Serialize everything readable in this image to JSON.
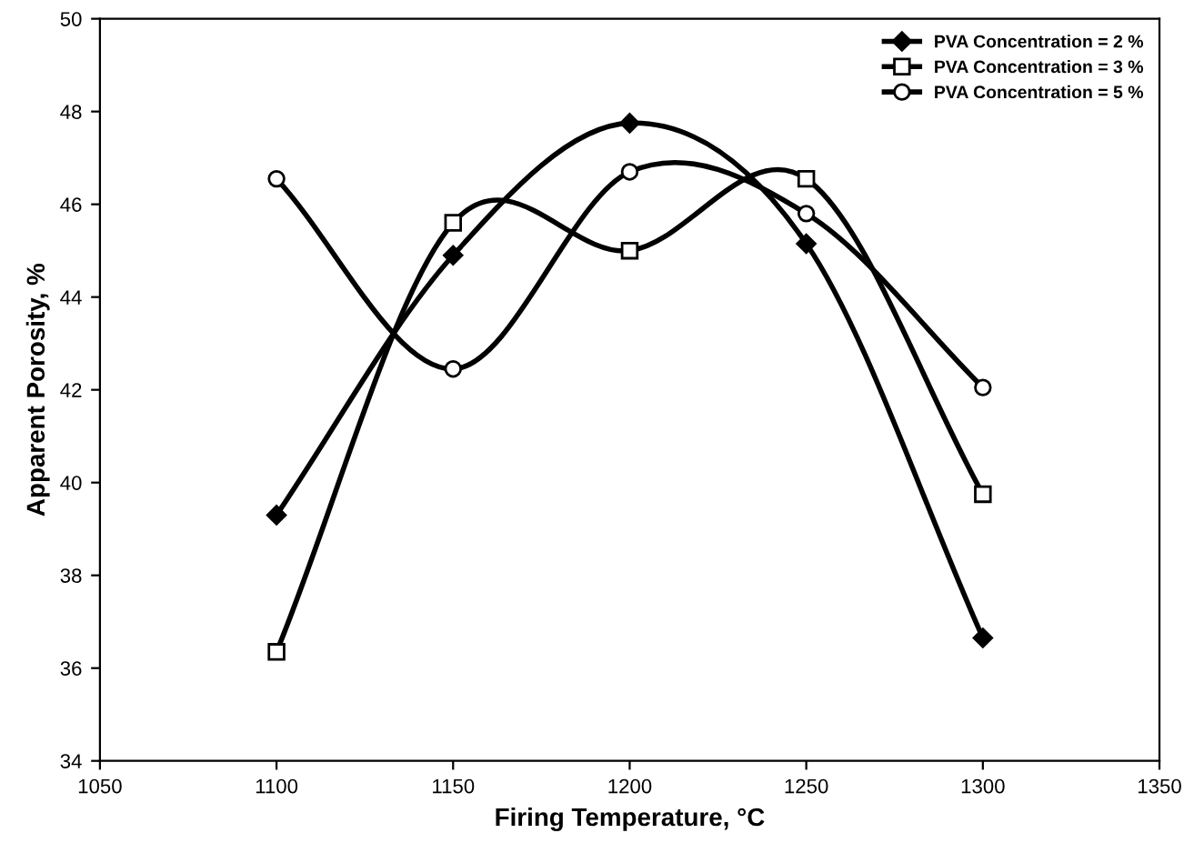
{
  "chart_data": {
    "type": "line",
    "xlabel": "Firing Temperature, °C",
    "ylabel": "Apparent Porosity, %",
    "x": [
      1100,
      1150,
      1200,
      1250,
      1300
    ],
    "series": [
      {
        "name": "PVA Concentration = 2 %",
        "color": "#000000",
        "marker": "diamond",
        "values": [
          39.3,
          44.9,
          47.75,
          45.15,
          36.65
        ]
      },
      {
        "name": "PVA Concentration = 3 %",
        "color": "#000000",
        "marker": "square",
        "values": [
          36.35,
          45.6,
          45.0,
          46.55,
          39.75
        ]
      },
      {
        "name": "PVA Concentration = 5 %",
        "color": "#000000",
        "marker": "circle",
        "values": [
          46.55,
          42.45,
          46.7,
          45.8,
          42.05
        ]
      }
    ],
    "xlim": [
      1050,
      1350
    ],
    "xticks": [
      1050,
      1100,
      1150,
      1200,
      1250,
      1300,
      1350
    ],
    "ylim": [
      34,
      50
    ],
    "yticks": [
      34,
      36,
      38,
      40,
      42,
      44,
      46,
      48,
      50
    ],
    "legend": "top right",
    "grid": false,
    "line_style": "solid"
  }
}
